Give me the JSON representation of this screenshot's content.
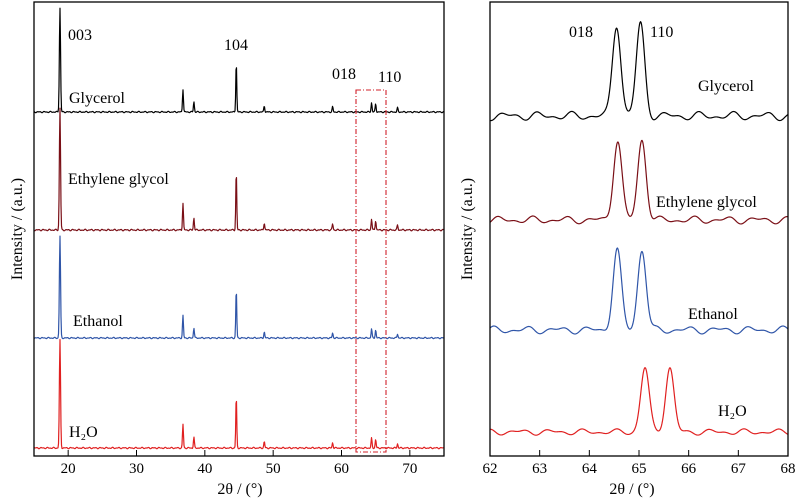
{
  "chart_data": [
    {
      "type": "line",
      "panel": "left",
      "xlabel": "2θ / (°)",
      "ylabel": "Intensity / (a.u.)",
      "xlim": [
        15,
        75
      ],
      "xticks": [
        20,
        30,
        40,
        50,
        60,
        70
      ],
      "y_scale": "stacked, arbitrary units",
      "grid": false,
      "zoom_region_x": [
        62,
        66.5
      ],
      "peak_labels": [
        {
          "text": "003",
          "x": 18.8
        },
        {
          "text": "104",
          "x": 44.6
        },
        {
          "text": "018",
          "x": 64.5
        },
        {
          "text": "110",
          "x": 65.0
        }
      ],
      "peaks": [
        {
          "x": 18.8,
          "rel": 1.0
        },
        {
          "x": 36.8,
          "rel": 0.22
        },
        {
          "x": 38.4,
          "rel": 0.1
        },
        {
          "x": 44.6,
          "rel": 0.48
        },
        {
          "x": 48.7,
          "rel": 0.06
        },
        {
          "x": 58.7,
          "rel": 0.05
        },
        {
          "x": 64.4,
          "rel": 0.09
        },
        {
          "x": 65.0,
          "rel": 0.08
        },
        {
          "x": 68.2,
          "rel": 0.04
        }
      ],
      "series": [
        {
          "name": "Glycerol",
          "color": "#000000"
        },
        {
          "name": "Ethylene glycol",
          "color": "#7a0f16"
        },
        {
          "name": "Ethanol",
          "color": "#2f55a8"
        },
        {
          "name": "H₂O",
          "color": "#e02020"
        }
      ]
    },
    {
      "type": "line",
      "panel": "right",
      "xlabel": "2θ / (°)",
      "ylabel": "Intensity / (a.u.)",
      "xlim": [
        62,
        68
      ],
      "xticks": [
        62,
        63,
        64,
        65,
        66,
        67,
        68
      ],
      "y_scale": "stacked, arbitrary units",
      "grid": false,
      "peak_labels": [
        {
          "text": "018",
          "x": 64.5
        },
        {
          "text": "110",
          "x": 65.0
        }
      ],
      "series": [
        {
          "name": "Glycerol",
          "color": "#000000",
          "peaks": [
            64.55,
            65.03
          ]
        },
        {
          "name": "Ethylene glycol",
          "color": "#7a0f16",
          "peaks": [
            64.57,
            65.06
          ]
        },
        {
          "name": "Ethanol",
          "color": "#2f55a8",
          "peaks": [
            64.56,
            65.06
          ]
        },
        {
          "name": "H₂O",
          "color": "#e02020",
          "peaks": [
            65.12,
            65.62
          ]
        }
      ]
    }
  ]
}
